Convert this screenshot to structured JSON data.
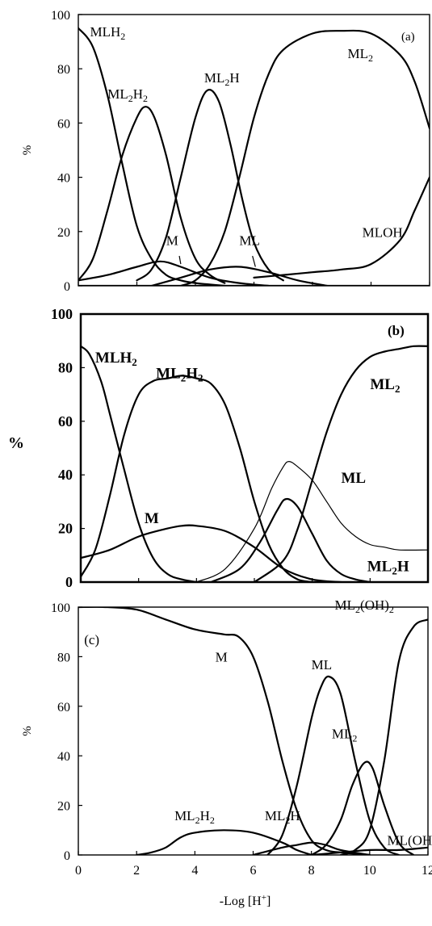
{
  "chart_data": [
    {
      "type": "line",
      "panel_label": "(a)",
      "ylabel": "%",
      "xlabel": "",
      "xlim": [
        0,
        12
      ],
      "ylim": [
        0,
        100
      ],
      "yticks": [
        "0",
        "20",
        "40",
        "60",
        "80",
        "100"
      ],
      "xticks": [],
      "series": [
        {
          "name": "MLH2",
          "x": [
            0,
            0.5,
            1,
            1.5,
            2,
            2.5,
            3,
            3.5,
            4,
            5
          ],
          "y": [
            95,
            88,
            70,
            45,
            22,
            10,
            4,
            2,
            1,
            0
          ]
        },
        {
          "name": "ML2H2",
          "x": [
            0,
            0.5,
            1,
            1.5,
            2,
            2.3,
            2.6,
            3,
            3.5,
            4,
            4.5,
            5
          ],
          "y": [
            2,
            10,
            28,
            48,
            62,
            66,
            62,
            48,
            25,
            10,
            4,
            1
          ]
        },
        {
          "name": "ML2H",
          "x": [
            2,
            2.5,
            3,
            3.5,
            4,
            4.4,
            4.8,
            5.2,
            5.6,
            6,
            6.5,
            7
          ],
          "y": [
            2,
            6,
            18,
            40,
            62,
            72,
            68,
            52,
            32,
            16,
            6,
            2
          ]
        },
        {
          "name": "ML2",
          "x": [
            3.5,
            4,
            4.5,
            5,
            5.5,
            6,
            6.5,
            7,
            8,
            9,
            10,
            11,
            11.5,
            12
          ],
          "y": [
            0,
            2,
            8,
            20,
            40,
            62,
            78,
            87,
            93,
            94,
            93,
            85,
            75,
            58
          ]
        },
        {
          "name": "MLOH",
          "x": [
            6,
            7,
            8,
            9,
            10,
            11,
            11.5,
            12
          ],
          "y": [
            3,
            4,
            5,
            6,
            8,
            17,
            28,
            40
          ]
        },
        {
          "name": "M",
          "x": [
            0,
            1,
            2,
            2.8,
            3.5,
            4.5,
            5.5,
            6.5
          ],
          "y": [
            2,
            4,
            7,
            9,
            7,
            3,
            1,
            0
          ]
        },
        {
          "name": "ML",
          "x": [
            2.5,
            3.5,
            4.5,
            5.5,
            6.5,
            7.5,
            8.5
          ],
          "y": [
            0,
            3,
            6,
            7,
            5,
            2,
            0
          ]
        },
        {
          "name": "",
          "x": [
            0,
            1,
            2,
            3,
            4,
            5,
            6,
            7,
            8,
            9,
            10,
            11,
            12
          ],
          "y": [
            0,
            0,
            0,
            0,
            0,
            0,
            0,
            0,
            0,
            0,
            0,
            0,
            0
          ],
          "color": "#29a8d8"
        }
      ],
      "labels": [
        {
          "text": "MLH",
          "sub": "2",
          "x": 0.4,
          "y": 92
        },
        {
          "text": "ML",
          "sub": "2",
          "post": "H",
          "sub2": "2",
          "x": 1.0,
          "y": 69
        },
        {
          "text": "ML",
          "sub": "2",
          "post": "H",
          "x": 4.3,
          "y": 75
        },
        {
          "text": "ML",
          "sub": "2",
          "x": 9.2,
          "y": 84
        },
        {
          "text": "MLOH",
          "x": 9.7,
          "y": 18
        },
        {
          "text": "M",
          "x": 3.0,
          "y": 15
        },
        {
          "text": "ML",
          "x": 5.5,
          "y": 15
        }
      ]
    },
    {
      "type": "line",
      "panel_label": "(b)",
      "ylabel": "%",
      "xlabel": "",
      "xlim": [
        0,
        12
      ],
      "ylim": [
        0,
        100
      ],
      "yticks": [
        "0",
        "20",
        "40",
        "60",
        "80",
        "100"
      ],
      "xticks": [],
      "series": [
        {
          "name": "MLH2",
          "x": [
            0,
            0.3,
            0.7,
            1,
            1.5,
            2,
            2.5,
            3,
            3.5,
            4
          ],
          "y": [
            88,
            85,
            75,
            63,
            42,
            22,
            9,
            3,
            1,
            0
          ]
        },
        {
          "name": "ML2H2",
          "x": [
            0,
            0.5,
            1,
            1.5,
            2,
            2.5,
            3,
            3.5,
            4,
            4.5,
            5,
            5.5,
            6,
            6.5,
            7,
            7.5,
            8
          ],
          "y": [
            2,
            12,
            32,
            55,
            70,
            75,
            76,
            77,
            76,
            74,
            66,
            50,
            30,
            14,
            5,
            1,
            0
          ]
        },
        {
          "name": "M",
          "x": [
            0,
            1,
            2,
            3,
            3.5,
            4,
            5,
            6,
            7,
            8,
            9
          ],
          "y": [
            9,
            12,
            17,
            20,
            21,
            21,
            19,
            13,
            5,
            1,
            0
          ]
        },
        {
          "name": "ML",
          "x": [
            4,
            5,
            6,
            6.6,
            7,
            7.2,
            7.5,
            8,
            8.5,
            9,
            9.5,
            10,
            10.5,
            11,
            12
          ],
          "y": [
            0,
            5,
            20,
            35,
            43,
            45,
            43,
            38,
            30,
            22,
            17,
            14,
            13,
            12,
            12
          ]
        },
        {
          "name": "ML2H",
          "x": [
            4.5,
            5.5,
            6.2,
            6.8,
            7.1,
            7.5,
            8,
            8.5,
            9,
            9.5,
            10
          ],
          "y": [
            0,
            5,
            15,
            27,
            31,
            28,
            18,
            8,
            3,
            1,
            0
          ]
        },
        {
          "name": "ML2",
          "x": [
            6,
            7,
            7.5,
            8,
            8.5,
            9,
            9.5,
            10,
            10.5,
            11,
            11.5,
            12
          ],
          "y": [
            0,
            8,
            20,
            38,
            56,
            70,
            79,
            84,
            86,
            87,
            88,
            88
          ]
        }
      ],
      "labels": [
        {
          "text": "MLH",
          "sub": "2",
          "x": 0.5,
          "y": 82
        },
        {
          "text": "ML",
          "sub": "2",
          "post": "H",
          "sub2": "2",
          "x": 2.6,
          "y": 76
        },
        {
          "text": "M",
          "x": 2.2,
          "y": 22
        },
        {
          "text": "ML",
          "sub": "2",
          "x": 10.0,
          "y": 72
        },
        {
          "text": "ML",
          "x": 9.0,
          "y": 37
        },
        {
          "text": "ML",
          "sub": "2",
          "post": "H",
          "x": 9.9,
          "y": 4
        }
      ]
    },
    {
      "type": "line",
      "panel_label": "(c)",
      "ylabel": "%",
      "xlabel": "-Log [H+]",
      "xlim": [
        0,
        12
      ],
      "ylim": [
        0,
        100
      ],
      "yticks": [
        "0",
        "20",
        "40",
        "60",
        "80",
        "100"
      ],
      "xticks": [
        "0",
        "2",
        "4",
        "6",
        "8",
        "10",
        "12"
      ],
      "series": [
        {
          "name": "M",
          "x": [
            0,
            1,
            2,
            3,
            4,
            5,
            5.5,
            6,
            6.5,
            7,
            7.5,
            8,
            8.5,
            9,
            10
          ],
          "y": [
            100,
            100,
            99,
            95,
            91,
            89,
            88,
            80,
            62,
            38,
            18,
            6,
            2,
            1,
            0
          ]
        },
        {
          "name": "ML",
          "x": [
            6.5,
            7,
            7.5,
            8,
            8.3,
            8.6,
            9,
            9.5,
            10,
            10.5,
            11
          ],
          "y": [
            0,
            8,
            28,
            55,
            67,
            72,
            65,
            38,
            14,
            3,
            0
          ]
        },
        {
          "name": "ML2",
          "x": [
            8,
            8.5,
            9,
            9.4,
            9.8,
            10.1,
            10.5,
            11,
            11.5
          ],
          "y": [
            0,
            4,
            14,
            28,
            37,
            35,
            20,
            5,
            0
          ]
        },
        {
          "name": "ML2(OH)2",
          "x": [
            9,
            9.5,
            10,
            10.5,
            11,
            11.5,
            12
          ],
          "y": [
            0,
            2,
            10,
            38,
            78,
            92,
            95
          ]
        },
        {
          "name": "ML2H2",
          "x": [
            2,
            2.5,
            3,
            3.5,
            4,
            5,
            6,
            7,
            7.5,
            8
          ],
          "y": [
            0,
            1,
            3,
            7,
            9,
            10,
            9,
            5,
            2,
            0
          ]
        },
        {
          "name": "ML2H",
          "x": [
            6,
            7,
            7.5,
            8,
            8.5,
            9,
            10
          ],
          "y": [
            0,
            3,
            4,
            5,
            4,
            2,
            0
          ]
        },
        {
          "name": "ML(OH)",
          "x": [
            8,
            9,
            10,
            11,
            12
          ],
          "y": [
            0,
            1,
            2,
            2,
            3
          ]
        }
      ],
      "labels": [
        {
          "text": "(c)",
          "x": 0.2,
          "y": 85
        },
        {
          "text": "M",
          "x": 4.7,
          "y": 78
        },
        {
          "text": "ML",
          "x": 8.0,
          "y": 75
        },
        {
          "text": "ML",
          "sub": "2",
          "x": 8.7,
          "y": 47
        },
        {
          "text": "ML",
          "sub": "2",
          "post": "(OH)",
          "sub2": "2",
          "x": 8.8,
          "y": 99
        },
        {
          "text": "ML",
          "sub": "2",
          "post": "H",
          "sub2": "2",
          "x": 3.3,
          "y": 14
        },
        {
          "text": "ML",
          "sub": "2",
          "post": "H",
          "x": 6.4,
          "y": 14
        },
        {
          "text": "ML(OH)",
          "x": 10.6,
          "y": 4
        }
      ]
    }
  ]
}
